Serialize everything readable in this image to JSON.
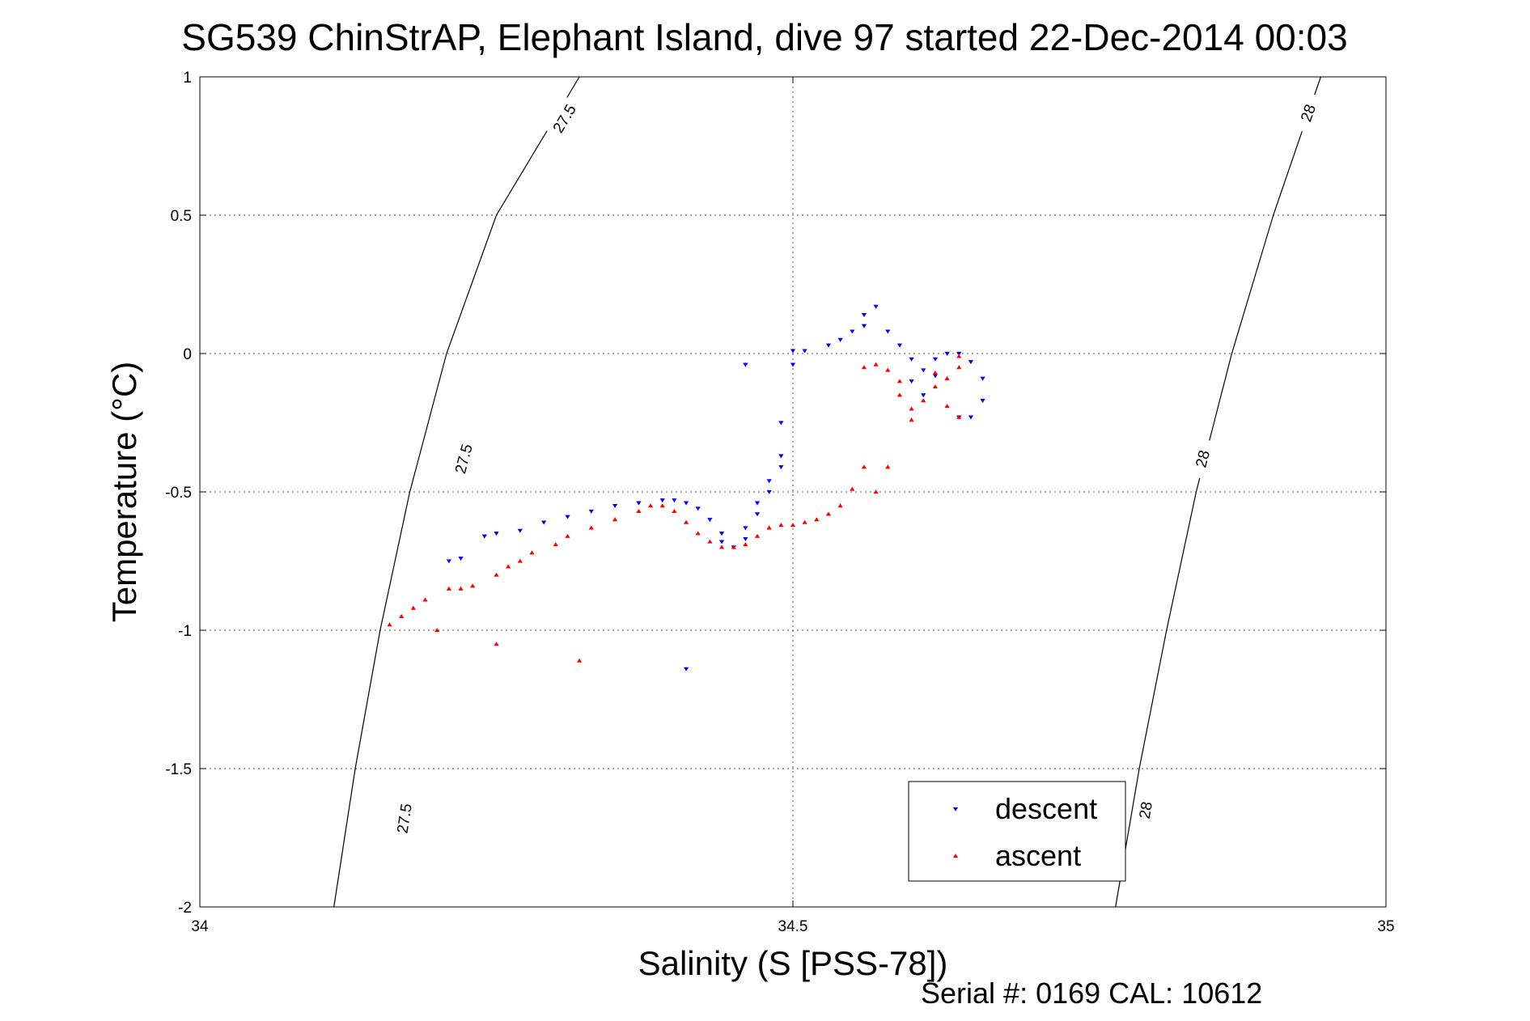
{
  "title": "SG539 ChinStrAP, Elephant Island, dive 97 started 22-Dec-2014 00:03",
  "footer": "Serial #: 0169 CAL: 10612",
  "chart_data": {
    "type": "scatter",
    "title": "SG539 ChinStrAP, Elephant Island, dive 97 started 22-Dec-2014 00:03",
    "xlabel": "Salinity (S [PSS-78])",
    "ylabel": "Temperature (°C)",
    "xlim": [
      34,
      35
    ],
    "ylim": [
      -2,
      1
    ],
    "xticks": [
      34,
      34.5,
      35
    ],
    "xtick_labels": [
      "34",
      "34.5",
      "35"
    ],
    "yticks": [
      -2,
      -1.5,
      -1,
      -0.5,
      0,
      0.5,
      1
    ],
    "ytick_labels": [
      "-2",
      "-1.5",
      "-1",
      "-0.5",
      "0",
      "0.5",
      "1"
    ],
    "grid": true,
    "legend_position": "bottom-right",
    "contours": [
      {
        "level": "27.5",
        "points": [
          [
            34.32,
            1.0
          ],
          [
            34.25,
            0.5
          ],
          [
            34.208,
            0.0
          ],
          [
            34.177,
            -0.5
          ],
          [
            34.152,
            -1.0
          ],
          [
            34.131,
            -1.5
          ],
          [
            34.113,
            -2.0
          ]
        ],
        "labels": [
          {
            "text": "27.5",
            "x": 34.307,
            "y": 0.85
          },
          {
            "text": "27.5",
            "x": 34.222,
            "y": -0.38
          },
          {
            "text": "27.5",
            "x": 34.172,
            "y": -1.68
          }
        ]
      },
      {
        "level": "28",
        "points": [
          [
            34.945,
            1.0
          ],
          [
            34.905,
            0.5
          ],
          [
            34.87,
            0.0
          ],
          [
            34.84,
            -0.5
          ],
          [
            34.815,
            -1.0
          ],
          [
            34.792,
            -1.5
          ],
          [
            34.772,
            -2.0
          ]
        ],
        "labels": [
          {
            "text": "28",
            "x": 34.934,
            "y": 0.87
          },
          {
            "text": "28",
            "x": 34.845,
            "y": -0.38
          },
          {
            "text": "28",
            "x": 34.797,
            "y": -1.65
          }
        ]
      }
    ],
    "series": [
      {
        "name": "descent",
        "color": "#0000ff",
        "marker": "triangle-down",
        "points": [
          [
            34.41,
            -1.14
          ],
          [
            34.21,
            -0.75
          ],
          [
            34.22,
            -0.74
          ],
          [
            34.24,
            -0.66
          ],
          [
            34.25,
            -0.65
          ],
          [
            34.27,
            -0.64
          ],
          [
            34.29,
            -0.61
          ],
          [
            34.31,
            -0.59
          ],
          [
            34.33,
            -0.57
          ],
          [
            34.35,
            -0.55
          ],
          [
            34.37,
            -0.54
          ],
          [
            34.39,
            -0.53
          ],
          [
            34.4,
            -0.53
          ],
          [
            34.41,
            -0.54
          ],
          [
            34.42,
            -0.56
          ],
          [
            34.43,
            -0.6
          ],
          [
            34.44,
            -0.65
          ],
          [
            34.44,
            -0.68
          ],
          [
            34.45,
            -0.7
          ],
          [
            34.46,
            -0.67
          ],
          [
            34.46,
            -0.63
          ],
          [
            34.47,
            -0.58
          ],
          [
            34.47,
            -0.54
          ],
          [
            34.48,
            -0.5
          ],
          [
            34.48,
            -0.46
          ],
          [
            34.49,
            -0.41
          ],
          [
            34.49,
            -0.37
          ],
          [
            34.49,
            -0.25
          ],
          [
            34.46,
            -0.04
          ],
          [
            34.5,
            -0.04
          ],
          [
            34.5,
            0.01
          ],
          [
            34.51,
            0.01
          ],
          [
            34.53,
            0.03
          ],
          [
            34.54,
            0.05
          ],
          [
            34.55,
            0.08
          ],
          [
            34.56,
            0.1
          ],
          [
            34.56,
            0.14
          ],
          [
            34.57,
            0.17
          ],
          [
            34.58,
            0.08
          ],
          [
            34.59,
            0.03
          ],
          [
            34.6,
            -0.02
          ],
          [
            34.61,
            -0.06
          ],
          [
            34.6,
            -0.1
          ],
          [
            34.61,
            -0.15
          ],
          [
            34.62,
            -0.08
          ],
          [
            34.62,
            -0.02
          ],
          [
            34.63,
            0.0
          ],
          [
            34.64,
            0.0
          ],
          [
            34.65,
            -0.03
          ],
          [
            34.66,
            -0.09
          ],
          [
            34.66,
            -0.17
          ],
          [
            34.65,
            -0.23
          ],
          [
            34.64,
            -0.23
          ]
        ]
      },
      {
        "name": "ascent",
        "color": "#ff0000",
        "marker": "triangle-up",
        "points": [
          [
            34.16,
            -0.98
          ],
          [
            34.17,
            -0.95
          ],
          [
            34.18,
            -0.92
          ],
          [
            34.19,
            -0.89
          ],
          [
            34.2,
            -1.0
          ],
          [
            34.21,
            -0.85
          ],
          [
            34.22,
            -0.85
          ],
          [
            34.23,
            -0.84
          ],
          [
            34.25,
            -0.8
          ],
          [
            34.26,
            -0.77
          ],
          [
            34.27,
            -0.75
          ],
          [
            34.28,
            -0.72
          ],
          [
            34.3,
            -0.69
          ],
          [
            34.31,
            -0.66
          ],
          [
            34.33,
            -0.63
          ],
          [
            34.35,
            -0.6
          ],
          [
            34.37,
            -0.57
          ],
          [
            34.38,
            -0.55
          ],
          [
            34.39,
            -0.55
          ],
          [
            34.4,
            -0.57
          ],
          [
            34.41,
            -0.61
          ],
          [
            34.42,
            -0.65
          ],
          [
            34.43,
            -0.68
          ],
          [
            34.44,
            -0.7
          ],
          [
            34.45,
            -0.7
          ],
          [
            34.46,
            -0.69
          ],
          [
            34.47,
            -0.66
          ],
          [
            34.48,
            -0.63
          ],
          [
            34.49,
            -0.62
          ],
          [
            34.5,
            -0.62
          ],
          [
            34.51,
            -0.61
          ],
          [
            34.52,
            -0.6
          ],
          [
            34.53,
            -0.58
          ],
          [
            34.54,
            -0.55
          ],
          [
            34.55,
            -0.49
          ],
          [
            34.56,
            -0.41
          ],
          [
            34.57,
            -0.5
          ],
          [
            34.58,
            -0.41
          ],
          [
            34.56,
            -0.05
          ],
          [
            34.57,
            -0.04
          ],
          [
            34.58,
            -0.06
          ],
          [
            34.59,
            -0.1
          ],
          [
            34.59,
            -0.15
          ],
          [
            34.6,
            -0.2
          ],
          [
            34.6,
            -0.24
          ],
          [
            34.61,
            -0.17
          ],
          [
            34.62,
            -0.12
          ],
          [
            34.62,
            -0.07
          ],
          [
            34.63,
            -0.09
          ],
          [
            34.63,
            -0.19
          ],
          [
            34.64,
            -0.01
          ],
          [
            34.64,
            -0.05
          ],
          [
            34.64,
            -0.23
          ],
          [
            34.25,
            -1.05
          ],
          [
            34.32,
            -1.11
          ]
        ]
      }
    ]
  }
}
